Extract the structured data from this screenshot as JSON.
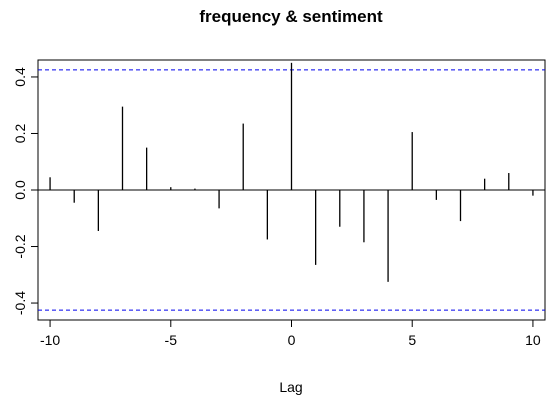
{
  "chart_data": {
    "type": "bar",
    "subtype": "cross-correlation",
    "title": "frequency & sentiment",
    "xlabel": "Lag",
    "ylabel": "",
    "xlim": [
      -10.5,
      10.5
    ],
    "ylim": [
      -0.46,
      0.46
    ],
    "x": [
      -10,
      -9,
      -8,
      -7,
      -6,
      -5,
      -4,
      -3,
      -2,
      -1,
      0,
      1,
      2,
      3,
      4,
      5,
      6,
      7,
      8,
      9,
      10
    ],
    "values": [
      0.045,
      -0.045,
      -0.145,
      0.295,
      0.15,
      0.01,
      0.005,
      -0.065,
      0.235,
      -0.175,
      0.45,
      -0.265,
      -0.13,
      -0.185,
      -0.325,
      0.205,
      -0.035,
      -0.11,
      0.04,
      0.06,
      -0.02
    ],
    "confidence_bound": 0.425,
    "x_ticks": [
      -10,
      -5,
      0,
      5,
      10
    ],
    "x_tick_labels": [
      "-10",
      "-5",
      "0",
      "5",
      "10"
    ],
    "y_ticks": [
      -0.4,
      -0.2,
      0.0,
      0.2,
      0.4
    ],
    "y_tick_labels": [
      "-0.4",
      "-0.2",
      "0.0",
      "0.2",
      "0.4"
    ],
    "grid": false,
    "colors": {
      "bars": "#000000",
      "bounds": "#0000ee",
      "zero_line": "#000000"
    }
  }
}
